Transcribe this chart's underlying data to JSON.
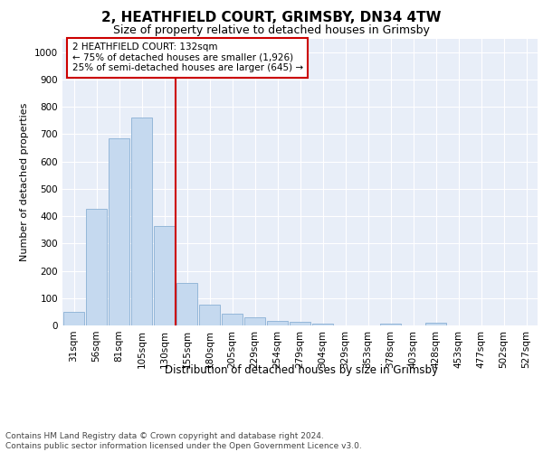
{
  "title": "2, HEATHFIELD COURT, GRIMSBY, DN34 4TW",
  "subtitle": "Size of property relative to detached houses in Grimsby",
  "xlabel": "Distribution of detached houses by size in Grimsby",
  "ylabel": "Number of detached properties",
  "footnote": "Contains HM Land Registry data © Crown copyright and database right 2024.\nContains public sector information licensed under the Open Government Licence v3.0.",
  "categories": [
    "31sqm",
    "56sqm",
    "81sqm",
    "105sqm",
    "130sqm",
    "155sqm",
    "180sqm",
    "205sqm",
    "229sqm",
    "254sqm",
    "279sqm",
    "304sqm",
    "329sqm",
    "353sqm",
    "378sqm",
    "403sqm",
    "428sqm",
    "453sqm",
    "477sqm",
    "502sqm",
    "527sqm"
  ],
  "values": [
    50,
    425,
    685,
    760,
    365,
    155,
    75,
    42,
    30,
    18,
    12,
    8,
    0,
    0,
    8,
    0,
    10,
    0,
    0,
    0,
    0
  ],
  "bar_color": "#c5d9ef",
  "bar_edge_color": "#8ab0d4",
  "vline_color": "#cc0000",
  "annotation_text": "2 HEATHFIELD COURT: 132sqm\n← 75% of detached houses are smaller (1,926)\n25% of semi-detached houses are larger (645) →",
  "ylim": [
    0,
    1050
  ],
  "yticks": [
    0,
    100,
    200,
    300,
    400,
    500,
    600,
    700,
    800,
    900,
    1000
  ],
  "plot_bg_color": "#e8eef8",
  "title_fontsize": 11,
  "subtitle_fontsize": 9,
  "xlabel_fontsize": 8.5,
  "ylabel_fontsize": 8,
  "tick_fontsize": 7.5,
  "footnote_fontsize": 6.5
}
